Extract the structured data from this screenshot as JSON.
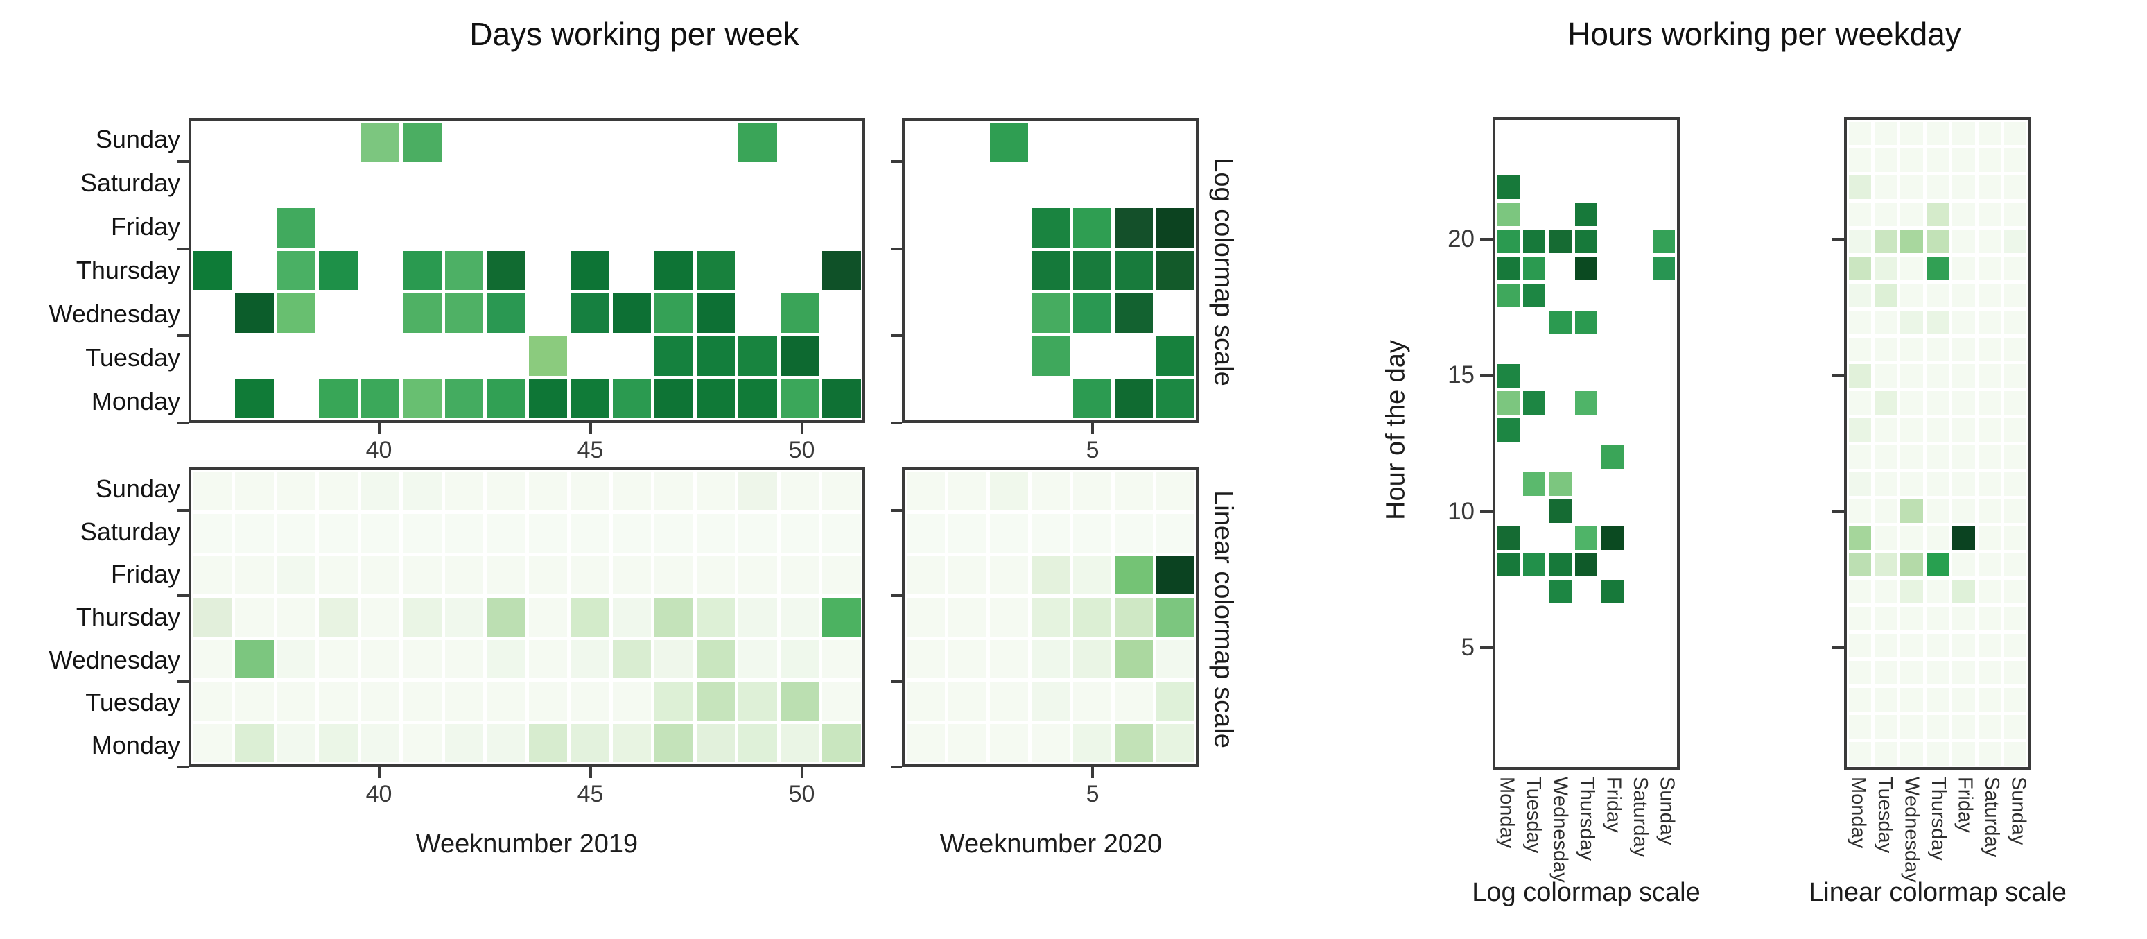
{
  "titles": {
    "left": "Days working per week",
    "right": "Hours working per weekday"
  },
  "axis_labels": {
    "week2019": "Weeknumber 2019",
    "week2020": "Weeknumber 2020",
    "hour_of_day": "Hour of the day",
    "log_scale": "Log colormap scale",
    "linear_scale": "Linear colormap scale"
  },
  "colors": {
    "axis": "#3a3a3a",
    "background": "#ffffff",
    "colormap_min": "#f7fcf5",
    "colormap_max": "#00441b"
  },
  "chart_data": [
    {
      "id": "days-log-2019",
      "type": "heatmap",
      "scale": "log",
      "x_domain": [
        35.5,
        51.5
      ],
      "x_ticks": [
        40,
        45,
        50
      ],
      "columns": [
        36,
        37,
        38,
        39,
        40,
        41,
        42,
        43,
        44,
        45,
        46,
        47,
        48,
        49,
        50,
        51
      ],
      "rows": [
        "Sunday",
        "Saturday",
        "Friday",
        "Thursday",
        "Wednesday",
        "Tuesday",
        "Monday"
      ],
      "cells": [
        [
          null,
          null,
          null,
          null,
          "#7cc67f",
          "#4bae62",
          null,
          null,
          null,
          null,
          null,
          null,
          null,
          "#3aa558",
          null,
          null
        ],
        [
          null,
          null,
          null,
          null,
          null,
          null,
          null,
          null,
          null,
          null,
          null,
          null,
          null,
          null,
          null,
          null
        ],
        [
          null,
          null,
          "#41aa5e",
          null,
          null,
          null,
          null,
          null,
          null,
          null,
          null,
          null,
          null,
          null,
          null,
          null
        ],
        [
          "#0e7b37",
          null,
          "#4ab064",
          "#1e9048",
          null,
          "#2a9a50",
          "#4db065",
          "#116b31",
          null,
          "#0d7435",
          null,
          "#0e7435",
          "#18813d",
          null,
          null,
          "#0f5128"
        ],
        [
          null,
          "#0c5d2b",
          "#68bf70",
          null,
          null,
          "#4fb164",
          "#4fb165",
          "#2a9852",
          null,
          "#168040",
          "#0d7034",
          "#35a156",
          "#0d7034",
          null,
          "#3aa458",
          null
        ],
        [
          null,
          null,
          null,
          null,
          null,
          null,
          null,
          null,
          "#8bcb7e",
          null,
          null,
          "#15813e",
          "#137e3c",
          "#18843f",
          "#0d6930",
          null
        ],
        [
          null,
          "#107b37",
          null,
          "#38a657",
          "#3ba85a",
          "#68bf71",
          "#44ac60",
          "#31a054",
          "#0e7636",
          "#107b38",
          "#2b9a50",
          "#0e7435",
          "#107937",
          "#117b38",
          "#3ba75a",
          "#0f7134"
        ]
      ]
    },
    {
      "id": "days-log-2020",
      "type": "heatmap",
      "scale": "log",
      "x_domain": [
        0.5,
        7.5
      ],
      "x_ticks": [
        5
      ],
      "columns": [
        1,
        2,
        3,
        4,
        5,
        6,
        7
      ],
      "rows": [
        "Sunday",
        "Saturday",
        "Friday",
        "Thursday",
        "Wednesday",
        "Tuesday",
        "Monday"
      ],
      "cells": [
        [
          null,
          null,
          "#2f9e52",
          null,
          null,
          null,
          null
        ],
        [
          null,
          null,
          null,
          null,
          null,
          null,
          null
        ],
        [
          null,
          null,
          null,
          "#1a8440",
          "#2f9e52",
          "#14502a",
          "#0c4320"
        ],
        [
          null,
          null,
          null,
          "#15793a",
          "#187b3c",
          "#187b3c",
          "#135a2a"
        ],
        [
          null,
          null,
          null,
          "#46ac60",
          "#2a9852",
          "#136230",
          null
        ],
        [
          null,
          null,
          null,
          "#3fa85c",
          null,
          null,
          "#17813d"
        ],
        [
          null,
          null,
          null,
          null,
          "#2c9b51",
          "#106b31",
          "#1c8843"
        ]
      ]
    },
    {
      "id": "days-linear-2019",
      "type": "heatmap",
      "scale": "linear",
      "x_domain": [
        35.5,
        51.5
      ],
      "x_ticks": [
        40,
        45,
        50
      ],
      "columns": [
        36,
        37,
        38,
        39,
        40,
        41,
        42,
        43,
        44,
        45,
        46,
        47,
        48,
        49,
        50,
        51
      ],
      "rows": [
        "Sunday",
        "Saturday",
        "Friday",
        "Thursday",
        "Wednesday",
        "Tuesday",
        "Monday"
      ],
      "cells": [
        [
          "#f5faf2",
          "#f5faf2",
          "#f5faf2",
          "#f5faf2",
          "#f2f9ef",
          "#f2f9ef",
          "#f5faf2",
          "#f5faf2",
          "#f5faf2",
          "#f5faf2",
          "#f5faf2",
          "#f5faf2",
          "#f5faf2",
          "#eef6ea",
          "#f5faf2",
          "#f5faf2"
        ],
        [
          "#f6fbf4",
          "#f6fbf4",
          "#f6fbf4",
          "#f6fbf4",
          "#f6fbf4",
          "#f6fbf4",
          "#f6fbf4",
          "#f6fbf4",
          "#f6fbf4",
          "#f6fbf4",
          "#f6fbf4",
          "#f6fbf4",
          "#f6fbf4",
          "#f6fbf4",
          "#f6fbf4",
          "#f6fbf4"
        ],
        [
          "#f5faf2",
          "#f5faf2",
          "#f2f9ef",
          "#f5faf2",
          "#f5faf2",
          "#f5faf2",
          "#f5faf2",
          "#f5faf2",
          "#f5faf2",
          "#f5faf2",
          "#f5faf2",
          "#f5faf2",
          "#f5faf2",
          "#f5faf2",
          "#f5faf2",
          "#f5faf2"
        ],
        [
          "#e2efdb",
          "#f5faf2",
          "#f5faf2",
          "#e8f3e2",
          "#f5faf2",
          "#eaf5e5",
          "#f0f8ed",
          "#bcdfb2",
          "#f5faf2",
          "#d3ebca",
          "#f0f8ed",
          "#c4e3ba",
          "#ddf0d6",
          "#f0f8ed",
          "#f2f9ef",
          "#4cb261"
        ],
        [
          "#f5faf2",
          "#7cc67f",
          "#f2f9ef",
          "#f5faf2",
          "#f5faf2",
          "#f5faf2",
          "#f5faf2",
          "#eff8ec",
          "#f5faf2",
          "#f0f8ed",
          "#d9edd1",
          "#eff7eb",
          "#c9e6bf",
          "#f2f9ef",
          "#eff8ec",
          "#f5faf2"
        ],
        [
          "#f5faf2",
          "#f5faf2",
          "#f5faf2",
          "#f5faf2",
          "#f5faf2",
          "#f5faf2",
          "#f5faf2",
          "#f5faf2",
          "#f5faf2",
          "#f5faf2",
          "#f5faf2",
          "#ddf0d6",
          "#c6e4bc",
          "#def0d7",
          "#bbdfb1",
          "#f5faf2"
        ],
        [
          "#f5faf2",
          "#dcefd5",
          "#f2f9ef",
          "#ebf6e7",
          "#f2f9ef",
          "#f5faf2",
          "#f0f8ed",
          "#f0f8ed",
          "#d7eccf",
          "#e3f2dd",
          "#e8f4e2",
          "#c4e3ba",
          "#e2f1dc",
          "#dff1d9",
          "#eaf5e5",
          "#c9e6bf"
        ]
      ]
    },
    {
      "id": "days-linear-2020",
      "type": "heatmap",
      "scale": "linear",
      "x_domain": [
        0.5,
        7.5
      ],
      "x_ticks": [
        5
      ],
      "columns": [
        1,
        2,
        3,
        4,
        5,
        6,
        7
      ],
      "rows": [
        "Sunday",
        "Saturday",
        "Friday",
        "Thursday",
        "Wednesday",
        "Tuesday",
        "Monday"
      ],
      "cells": [
        [
          "#f5faf2",
          "#f5faf2",
          "#f0f8ec",
          "#f5faf2",
          "#f5faf2",
          "#f5faf2",
          "#f5faf2"
        ],
        [
          "#f6fbf4",
          "#f6fbf4",
          "#f6fbf4",
          "#f6fbf4",
          "#f6fbf4",
          "#f6fbf4",
          "#f6fbf4"
        ],
        [
          "#f5faf2",
          "#f5faf2",
          "#f5faf2",
          "#e4f2dd",
          "#eff8eb",
          "#74c375",
          "#0b4321"
        ],
        [
          "#f5faf2",
          "#f5faf2",
          "#f5faf2",
          "#e5f3df",
          "#dcefd4",
          "#cfe8c5",
          "#7cc67f"
        ],
        [
          "#f5faf2",
          "#f5faf2",
          "#f5faf2",
          "#eff8ec",
          "#eaf5e5",
          "#abd8a0",
          "#f2f9ef"
        ],
        [
          "#f5faf2",
          "#f5faf2",
          "#f5faf2",
          "#f0f8ed",
          "#f5faf2",
          "#f5faf2",
          "#dff1d9"
        ],
        [
          "#f5faf2",
          "#f5faf2",
          "#f5faf2",
          "#f5faf2",
          "#edf7e9",
          "#c2e2b7",
          "#e7f4e1"
        ]
      ]
    },
    {
      "id": "hours-log",
      "type": "heatmap",
      "scale": "log",
      "y_domain": [
        0.5,
        24.5
      ],
      "y_ticks": [
        20,
        15,
        10,
        5
      ],
      "columns": [
        "Monday",
        "Tuesday",
        "Wednesday",
        "Thursday",
        "Friday",
        "Saturday",
        "Sunday"
      ],
      "rows": [
        24,
        23,
        22,
        21,
        20,
        19,
        18,
        17,
        16,
        15,
        14,
        13,
        12,
        11,
        10,
        9,
        8,
        7,
        6,
        5,
        4,
        3,
        2,
        1
      ],
      "cells": [
        [
          null,
          null,
          null,
          null,
          null,
          null,
          null
        ],
        [
          null,
          null,
          null,
          null,
          null,
          null,
          null
        ],
        [
          "#17793a",
          null,
          null,
          null,
          null,
          null,
          null
        ],
        [
          "#7cc67f",
          null,
          null,
          "#17793a",
          null,
          null,
          null
        ],
        [
          "#2b9a50",
          "#17793a",
          "#166b33",
          "#17793a",
          null,
          null,
          "#34a157"
        ],
        [
          "#17793a",
          "#2b9a50",
          null,
          "#0b4a21",
          null,
          null,
          "#289552"
        ],
        [
          "#3fa85c",
          "#1d8643",
          null,
          null,
          null,
          null,
          null
        ],
        [
          null,
          null,
          "#2b9a50",
          "#2b9a50",
          null,
          null,
          null
        ],
        [
          null,
          null,
          null,
          null,
          null,
          null,
          null
        ],
        [
          "#1d8643",
          null,
          null,
          null,
          null,
          null,
          null
        ],
        [
          "#7cc67f",
          "#1d8643",
          null,
          "#4fb468",
          null,
          null,
          null
        ],
        [
          "#1d8643",
          null,
          null,
          null,
          null,
          null,
          null
        ],
        [
          null,
          null,
          null,
          null,
          "#3aa558",
          null,
          null
        ],
        [
          null,
          "#5bb96d",
          "#7cc67f",
          null,
          null,
          null,
          null
        ],
        [
          null,
          null,
          "#156b33",
          null,
          null,
          null,
          null
        ],
        [
          "#156b33",
          null,
          null,
          "#4fb468",
          "#0b4a21",
          null,
          null
        ],
        [
          "#17793a",
          "#22904a",
          "#17793a",
          "#0f5a29",
          null,
          null,
          null
        ],
        [
          null,
          null,
          "#1d8643",
          null,
          "#17793a",
          null,
          null
        ],
        [
          null,
          null,
          null,
          null,
          null,
          null,
          null
        ],
        [
          null,
          null,
          null,
          null,
          null,
          null,
          null
        ],
        [
          null,
          null,
          null,
          null,
          null,
          null,
          null
        ],
        [
          null,
          null,
          null,
          null,
          null,
          null,
          null
        ],
        [
          null,
          null,
          null,
          null,
          null,
          null,
          null
        ],
        [
          null,
          null,
          null,
          null,
          null,
          null,
          null
        ]
      ]
    },
    {
      "id": "hours-linear",
      "type": "heatmap",
      "scale": "linear",
      "y_domain": [
        0.5,
        24.5
      ],
      "y_ticks": [
        20,
        15,
        10,
        5
      ],
      "columns": [
        "Monday",
        "Tuesday",
        "Wednesday",
        "Thursday",
        "Friday",
        "Saturday",
        "Sunday"
      ],
      "rows": [
        24,
        23,
        22,
        21,
        20,
        19,
        18,
        17,
        16,
        15,
        14,
        13,
        12,
        11,
        10,
        9,
        8,
        7,
        6,
        5,
        4,
        3,
        2,
        1
      ],
      "cells": [
        [
          "#f4faf1",
          "#f4faf1",
          "#f4faf1",
          "#f4faf1",
          "#f4faf1",
          "#f4faf1",
          "#f4faf1"
        ],
        [
          "#f4faf1",
          "#f4faf1",
          "#f4faf1",
          "#f4faf1",
          "#f4faf1",
          "#f4faf1",
          "#f4faf1"
        ],
        [
          "#e3f2dd",
          "#f4faf1",
          "#f4faf1",
          "#f4faf1",
          "#f4faf1",
          "#f4faf1",
          "#f4faf1"
        ],
        [
          "#f4faf1",
          "#f4faf1",
          "#f4faf1",
          "#d5ebcb",
          "#f4faf1",
          "#f4faf1",
          "#f4faf1"
        ],
        [
          "#eff8ec",
          "#cbe6c1",
          "#a8d79e",
          "#c2e2b7",
          "#f4faf1",
          "#f4faf1",
          "#edf7ea"
        ],
        [
          "#cbe6c1",
          "#e9f5e4",
          "#f4faf1",
          "#31a054",
          "#f4faf1",
          "#f4faf1",
          "#f4faf1"
        ],
        [
          "#eff8ec",
          "#ddf0d6",
          "#f4faf1",
          "#f4faf1",
          "#f4faf1",
          "#f4faf1",
          "#f4faf1"
        ],
        [
          "#f4faf1",
          "#f4faf1",
          "#ebf6e7",
          "#e9f5e4",
          "#f4faf1",
          "#f4faf1",
          "#f4faf1"
        ],
        [
          "#f4faf1",
          "#f4faf1",
          "#f4faf1",
          "#f4faf1",
          "#f4faf1",
          "#f4faf1",
          "#f4faf1"
        ],
        [
          "#e1f1da",
          "#f4faf1",
          "#f4faf1",
          "#f4faf1",
          "#f4faf1",
          "#f4faf1",
          "#f4faf1"
        ],
        [
          "#f4faf1",
          "#e7f4e1",
          "#f4faf1",
          "#f4faf1",
          "#f4faf1",
          "#f4faf1",
          "#f4faf1"
        ],
        [
          "#e9f5e4",
          "#f4faf1",
          "#f4faf1",
          "#f4faf1",
          "#f4faf1",
          "#f4faf1",
          "#f4faf1"
        ],
        [
          "#f4faf1",
          "#f4faf1",
          "#f4faf1",
          "#f4faf1",
          "#f4faf1",
          "#f4faf1",
          "#f4faf1"
        ],
        [
          "#f0f8ed",
          "#f4faf1",
          "#f4faf1",
          "#f4faf1",
          "#f4faf1",
          "#f4faf1",
          "#f4faf1"
        ],
        [
          "#f4faf1",
          "#f4faf1",
          "#bee0b3",
          "#f4faf1",
          "#f4faf1",
          "#f4faf1",
          "#f4faf1"
        ],
        [
          "#a5d69b",
          "#f4faf1",
          "#f4faf1",
          "#f4faf1",
          "#0b4321",
          "#f4faf1",
          "#f4faf1"
        ],
        [
          "#bcdfb2",
          "#ddefd5",
          "#b4daa8",
          "#28a050",
          "#f4faf1",
          "#f4faf1",
          "#f4faf1"
        ],
        [
          "#f4faf1",
          "#f4faf1",
          "#e7f4e1",
          "#f4faf1",
          "#dff1d9",
          "#f4faf1",
          "#f4faf1"
        ],
        [
          "#f4faf1",
          "#f4faf1",
          "#f4faf1",
          "#f4faf1",
          "#f4faf1",
          "#f4faf1",
          "#f4faf1"
        ],
        [
          "#f4faf1",
          "#f4faf1",
          "#f4faf1",
          "#f4faf1",
          "#f4faf1",
          "#f4faf1",
          "#f4faf1"
        ],
        [
          "#f4faf1",
          "#f4faf1",
          "#f4faf1",
          "#f4faf1",
          "#f4faf1",
          "#f4faf1",
          "#f4faf1"
        ],
        [
          "#f4faf1",
          "#f4faf1",
          "#f4faf1",
          "#f4faf1",
          "#f4faf1",
          "#f4faf1",
          "#f4faf1"
        ],
        [
          "#f4faf1",
          "#f4faf1",
          "#f4faf1",
          "#f4faf1",
          "#f4faf1",
          "#f4faf1",
          "#f4faf1"
        ],
        [
          "#f4faf1",
          "#f4faf1",
          "#f4faf1",
          "#f4faf1",
          "#f4faf1",
          "#f4faf1",
          "#f4faf1"
        ]
      ]
    }
  ]
}
